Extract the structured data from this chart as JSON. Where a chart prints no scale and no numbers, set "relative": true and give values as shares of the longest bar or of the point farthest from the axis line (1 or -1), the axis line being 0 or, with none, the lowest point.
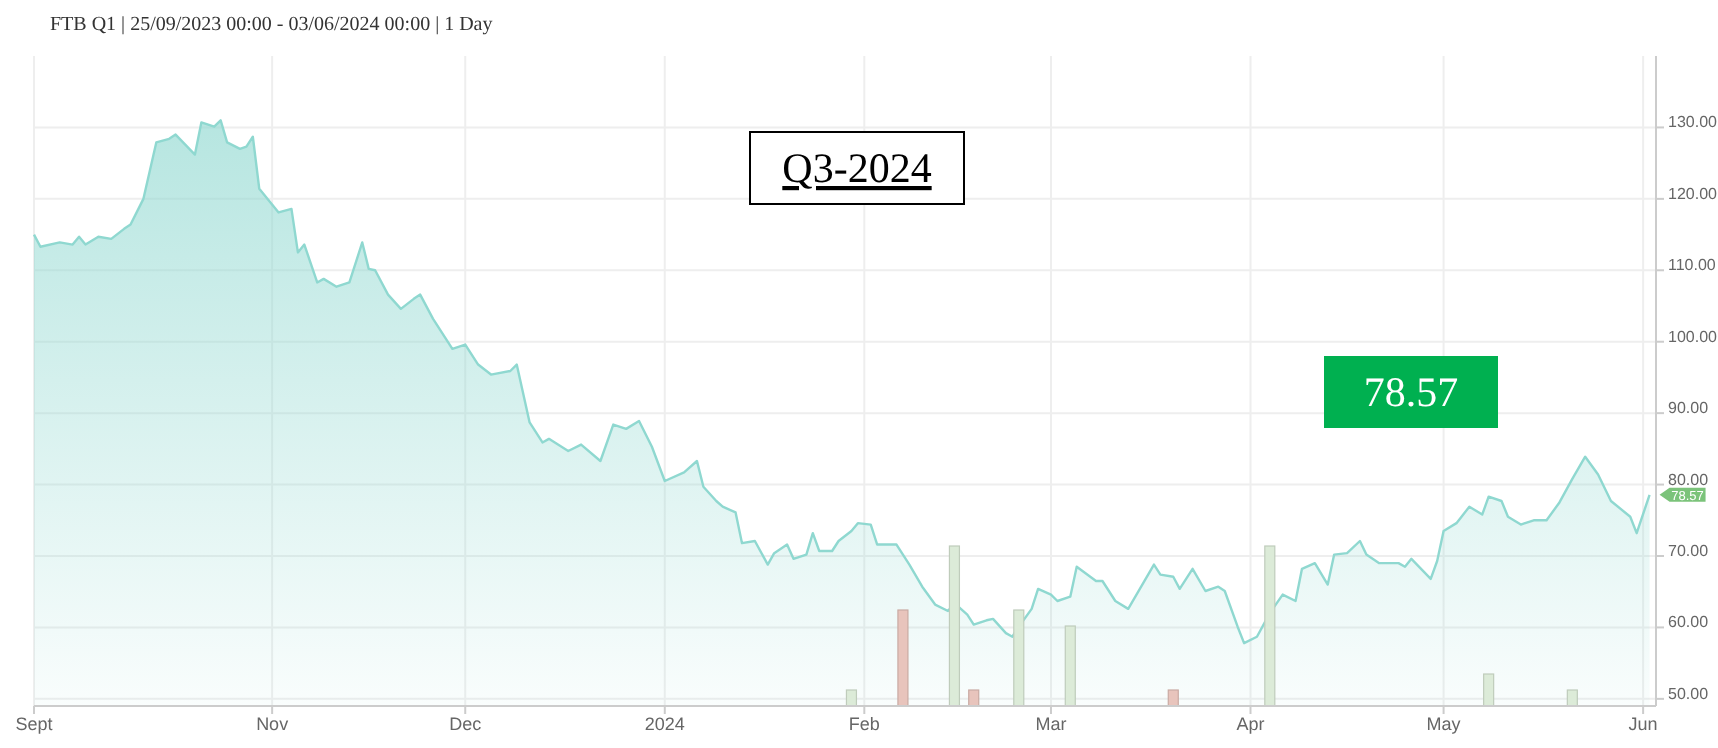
{
  "chart_data": [
    {
      "type": "area",
      "title": "FTB Q1 | 25/09/2023 00:00 - 03/06/2024 00:00 | 1 Day",
      "xlim": [
        "2023-09-25",
        "2024-06-03"
      ],
      "xticks": [
        {
          "value": "2023-09-25",
          "label": "Sept"
        },
        {
          "value": "2023-11-01",
          "label": "Nov"
        },
        {
          "value": "2023-12-01",
          "label": "Dec"
        },
        {
          "value": "2024-01-01",
          "label": "2024"
        },
        {
          "value": "2024-02-01",
          "label": "Feb"
        },
        {
          "value": "2024-03-01",
          "label": "Mar"
        },
        {
          "value": "2024-04-01",
          "label": "Apr"
        },
        {
          "value": "2024-05-01",
          "label": "May"
        },
        {
          "value": "2024-06-01",
          "label": "Jun"
        }
      ],
      "ylim": [
        49,
        140
      ],
      "yticks": [
        {
          "value": 50,
          "label": "50.00"
        },
        {
          "value": 60,
          "label": "60.00"
        },
        {
          "value": 70,
          "label": "70.00"
        },
        {
          "value": 80,
          "label": "80.00"
        },
        {
          "value": 90,
          "label": "90.00"
        },
        {
          "value": 100,
          "label": "100.00"
        },
        {
          "value": 110,
          "label": "110.00"
        },
        {
          "value": 120,
          "label": "120.00"
        },
        {
          "value": 130,
          "label": "130.00"
        }
      ],
      "grid": true,
      "series": [
        {
          "color": "#8fd8d0",
          "x": [
            "2023-09-25",
            "2023-09-26",
            "2023-09-29",
            "2023-10-01",
            "2023-10-02",
            "2023-10-03",
            "2023-10-05",
            "2023-10-07",
            "2023-10-09",
            "2023-10-10",
            "2023-10-12",
            "2023-10-14",
            "2023-10-16",
            "2023-10-17",
            "2023-10-20",
            "2023-10-21",
            "2023-10-23",
            "2023-10-24",
            "2023-10-25",
            "2023-10-27",
            "2023-10-28",
            "2023-10-29",
            "2023-10-30",
            "2023-11-02",
            "2023-11-04",
            "2023-11-05",
            "2023-11-06",
            "2023-11-08",
            "2023-11-09",
            "2023-11-11",
            "2023-11-13",
            "2023-11-15",
            "2023-11-16",
            "2023-11-17",
            "2023-11-19",
            "2023-11-21",
            "2023-11-23",
            "2023-11-24",
            "2023-11-26",
            "2023-11-29",
            "2023-12-01",
            "2023-12-03",
            "2023-12-05",
            "2023-12-08",
            "2023-12-09",
            "2023-12-11",
            "2023-12-13",
            "2023-12-14",
            "2023-12-17",
            "2023-12-19",
            "2023-12-22",
            "2023-12-24",
            "2023-12-26",
            "2023-12-28",
            "2023-12-30",
            "2024-01-01",
            "2024-01-04",
            "2024-01-06",
            "2024-01-07",
            "2024-01-09",
            "2024-01-10",
            "2024-01-12",
            "2024-01-13",
            "2024-01-15",
            "2024-01-17",
            "2024-01-18",
            "2024-01-20",
            "2024-01-21",
            "2024-01-23",
            "2024-01-24",
            "2024-01-25",
            "2024-01-27",
            "2024-01-28",
            "2024-01-30",
            "2024-01-31",
            "2024-02-02",
            "2024-02-03",
            "2024-02-06",
            "2024-02-08",
            "2024-02-10",
            "2024-02-12",
            "2024-02-14",
            "2024-02-15",
            "2024-02-17",
            "2024-02-18",
            "2024-02-20",
            "2024-02-21",
            "2024-02-23",
            "2024-02-24",
            "2024-02-25",
            "2024-02-27",
            "2024-02-28",
            "2024-03-01",
            "2024-03-02",
            "2024-03-04",
            "2024-03-05",
            "2024-03-08",
            "2024-03-09",
            "2024-03-11",
            "2024-03-13",
            "2024-03-17",
            "2024-03-18",
            "2024-03-20",
            "2024-03-21",
            "2024-03-23",
            "2024-03-25",
            "2024-03-27",
            "2024-03-28",
            "2024-03-30",
            "2024-03-31",
            "2024-04-02",
            "2024-04-04",
            "2024-04-06",
            "2024-04-08",
            "2024-04-09",
            "2024-04-11",
            "2024-04-13",
            "2024-04-14",
            "2024-04-16",
            "2024-04-18",
            "2024-04-19",
            "2024-04-21",
            "2024-04-24",
            "2024-04-25",
            "2024-04-26",
            "2024-04-29",
            "2024-04-30",
            "2024-05-01",
            "2024-05-03",
            "2024-05-05",
            "2024-05-07",
            "2024-05-08",
            "2024-05-10",
            "2024-05-11",
            "2024-05-13",
            "2024-05-15",
            "2024-05-17",
            "2024-05-19",
            "2024-05-21",
            "2024-05-23",
            "2024-05-25",
            "2024-05-27",
            "2024-05-30",
            "2024-05-31",
            "2024-06-02"
          ],
          "values": [
            115.0,
            113.3,
            113.9,
            113.6,
            114.7,
            113.6,
            114.7,
            114.4,
            115.8,
            116.4,
            120.0,
            127.9,
            128.4,
            129.0,
            126.2,
            130.7,
            130.1,
            131.0,
            127.9,
            127.0,
            127.3,
            128.7,
            121.4,
            118.1,
            118.6,
            112.5,
            113.6,
            108.3,
            108.8,
            107.7,
            108.3,
            113.9,
            110.2,
            110.0,
            106.6,
            104.6,
            106.0,
            106.6,
            103.2,
            99.0,
            99.6,
            96.8,
            95.4,
            95.9,
            96.8,
            88.7,
            85.9,
            86.4,
            84.7,
            85.6,
            83.3,
            88.4,
            87.8,
            88.9,
            85.3,
            80.5,
            81.7,
            83.3,
            79.7,
            77.7,
            76.9,
            76.1,
            71.8,
            72.1,
            68.8,
            70.4,
            71.6,
            69.6,
            70.2,
            73.2,
            70.7,
            70.7,
            72.1,
            73.5,
            74.6,
            74.4,
            71.6,
            71.6,
            68.8,
            65.7,
            63.2,
            62.3,
            63.4,
            61.8,
            60.4,
            61.0,
            61.2,
            59.2,
            58.7,
            60.1,
            62.6,
            65.4,
            64.6,
            63.7,
            64.3,
            68.5,
            66.5,
            66.5,
            63.7,
            62.6,
            68.8,
            67.4,
            67.1,
            65.4,
            68.2,
            65.1,
            65.7,
            65.1,
            60.1,
            57.8,
            58.7,
            62.0,
            64.6,
            63.7,
            68.2,
            69.0,
            66.0,
            70.2,
            70.4,
            72.1,
            70.2,
            69.0,
            69.0,
            68.5,
            69.6,
            66.8,
            69.3,
            73.5,
            74.6,
            76.9,
            75.8,
            78.3,
            77.7,
            75.5,
            74.4,
            75.0,
            75.0,
            77.5,
            80.8,
            83.9,
            81.4,
            77.7,
            75.5,
            73.2,
            78.57
          ]
        }
      ],
      "annotations": [
        "Q3-2024",
        "78.57",
        {
          "text": "78.57",
          "x": "2024-06-02",
          "y": 78.57
        }
      ]
    },
    {
      "type": "bar",
      "relative": true,
      "xlim": [
        "2023-09-25",
        "2024-06-03"
      ],
      "x": [
        "2024-01-30",
        "2024-02-07",
        "2024-02-15",
        "2024-02-18",
        "2024-02-25",
        "2024-03-04",
        "2024-03-20",
        "2024-04-04",
        "2024-05-08",
        "2024-05-21"
      ],
      "values": [
        0.1,
        0.6,
        1,
        0.1,
        0.6,
        0.5,
        0.1,
        1,
        0.2,
        0.1
      ],
      "colors": [
        "#dcebd8",
        "#e8c4bc",
        "#dcebd8",
        "#e8c4bc",
        "#dcebd8",
        "#dcebd8",
        "#e8c4bc",
        "#dcebd8",
        "#dcebd8",
        "#dcebd8"
      ]
    }
  ]
}
